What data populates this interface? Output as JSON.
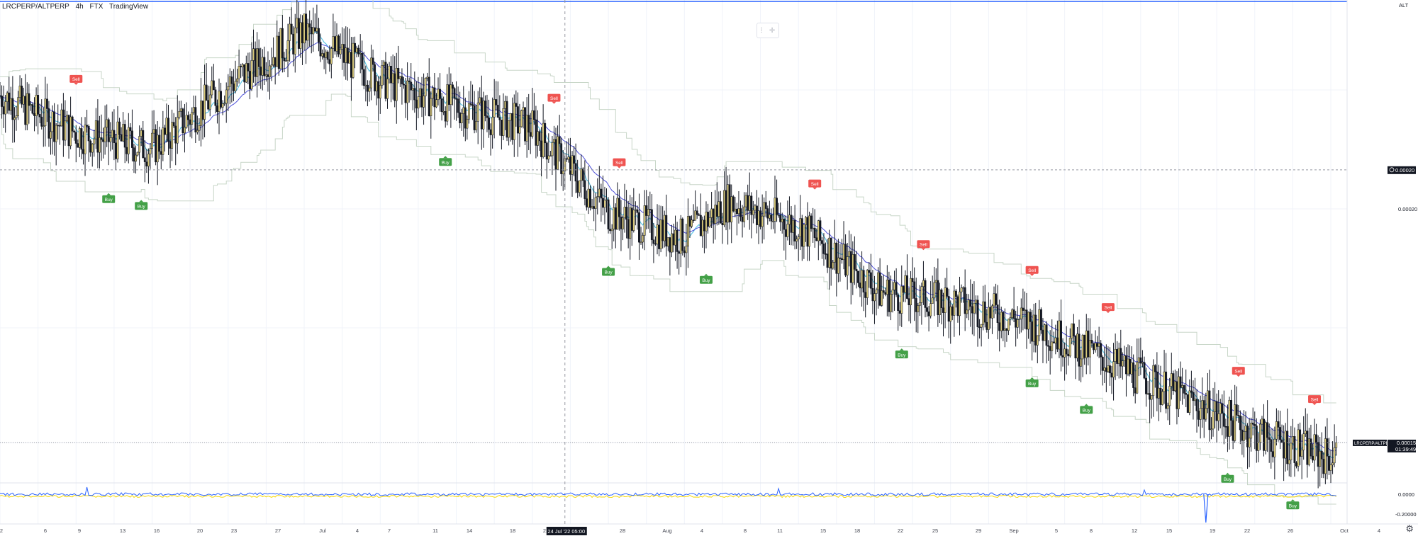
{
  "header": {
    "symbol": "LRCPERP/ALTPERP",
    "interval": "4h",
    "exchange": "FTX",
    "brand": "TradingView"
  },
  "colors": {
    "buy": "#43a047",
    "sell": "#ef5350",
    "ma_fast": "#5ec6e6",
    "ma_slow": "#4c4fd9",
    "channel": "#c8d6c8",
    "osc_blue": "#2962ff",
    "osc_yellow": "#f5d90a",
    "label_bg": "#131722"
  },
  "price_axis": {
    "top_label": "ALT",
    "ticks": [
      "0.00020",
      "0.00020",
      "0.00015"
    ],
    "last_price": "0.00015",
    "countdown": "01:39:49",
    "pair_tag": "LRCPERP/ALTPERP"
  },
  "osc_axis": {
    "ticks": [
      "0.0000",
      "-0.20000"
    ]
  },
  "time_axis": {
    "ticks": [
      "2",
      "6",
      "9",
      "13",
      "16",
      "20",
      "23",
      "27",
      "Jul",
      "4",
      "7",
      "11",
      "14",
      "18",
      "21",
      "28",
      "Aug",
      "4",
      "8",
      "11",
      "15",
      "18",
      "22",
      "25",
      "29",
      "Sep",
      "5",
      "8",
      "12",
      "15",
      "19",
      "22",
      "26",
      "Oct",
      "4"
    ],
    "crosshair_label": "24 Jul '22   05:00"
  },
  "signals": [
    {
      "type": "Sell",
      "label": "Sell"
    },
    {
      "type": "Buy",
      "label": "Buy"
    },
    {
      "type": "Buy",
      "label": "Buy"
    },
    {
      "type": "Buy",
      "label": "Buy"
    },
    {
      "type": "Sell",
      "label": "Sell"
    },
    {
      "type": "Sell",
      "label": "Sell"
    },
    {
      "type": "Buy",
      "label": "Buy"
    },
    {
      "type": "Buy",
      "label": "Buy"
    },
    {
      "type": "Sell",
      "label": "Sell"
    },
    {
      "type": "Buy",
      "label": "Buy"
    },
    {
      "type": "Sell",
      "label": "Sell"
    },
    {
      "type": "Sell",
      "label": "Sell"
    },
    {
      "type": "Buy",
      "label": "Buy"
    },
    {
      "type": "Sell",
      "label": "Sell"
    },
    {
      "type": "Buy",
      "label": "Buy"
    },
    {
      "type": "Sell",
      "label": "Sell"
    },
    {
      "type": "Buy",
      "label": "Buy"
    },
    {
      "type": "Sell",
      "label": "Sell"
    },
    {
      "type": "Buy",
      "label": "Buy"
    }
  ],
  "chart_data": {
    "type": "candlestick",
    "x_start": "2022-06-02",
    "x_end": "2022-10-04",
    "price_trend": {
      "dates": [
        "2022-06-02",
        "2022-06-09",
        "2022-06-16",
        "2022-06-23",
        "2022-06-30",
        "2022-07-07",
        "2022-07-14",
        "2022-07-21",
        "2022-07-28",
        "2022-08-04",
        "2022-08-08",
        "2022-08-11",
        "2022-08-15",
        "2022-08-22",
        "2022-08-29",
        "2022-09-05",
        "2022-09-12",
        "2022-09-19",
        "2022-09-26",
        "2022-10-02"
      ],
      "close": [
        0.00022,
        0.000213,
        0.00021,
        0.000222,
        0.000232,
        0.000223,
        0.000218,
        0.000214,
        0.000198,
        0.000193,
        0.0002,
        0.000198,
        0.000195,
        0.000183,
        0.000181,
        0.000177,
        0.00017,
        0.000163,
        0.000156,
        0.000152
      ]
    },
    "horizontal_line_price": 0.000206,
    "crosshair_date": "2022-07-24",
    "oscillator": {
      "range": [
        -0.2,
        0.05
      ]
    }
  }
}
